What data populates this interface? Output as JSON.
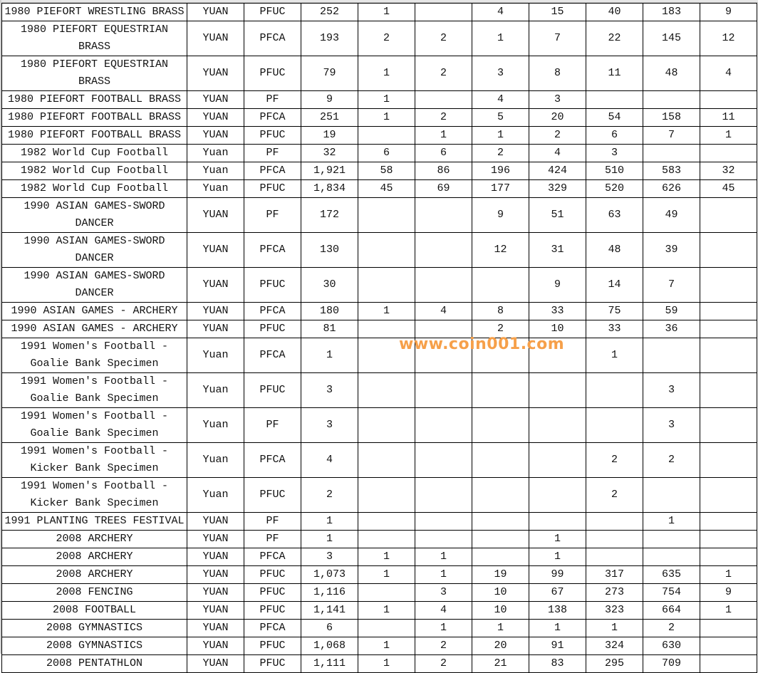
{
  "rows": [
    [
      "1980 PIEFORT WRESTLING BRASS",
      "YUAN",
      "PFUC",
      "252",
      "1",
      "",
      "4",
      "15",
      "40",
      "183",
      "9"
    ],
    [
      "1980 PIEFORT EQUESTRIAN BRASS",
      "YUAN",
      "PFCA",
      "193",
      "2",
      "2",
      "1",
      "7",
      "22",
      "145",
      "12"
    ],
    [
      "1980 PIEFORT EQUESTRIAN BRASS",
      "YUAN",
      "PFUC",
      "79",
      "1",
      "2",
      "3",
      "8",
      "11",
      "48",
      "4"
    ],
    [
      "1980 PIEFORT FOOTBALL BRASS",
      "YUAN",
      "PF",
      "9",
      "1",
      "",
      "4",
      "3",
      "",
      "",
      ""
    ],
    [
      "1980 PIEFORT FOOTBALL BRASS",
      "YUAN",
      "PFCA",
      "251",
      "1",
      "2",
      "5",
      "20",
      "54",
      "158",
      "11"
    ],
    [
      "1980 PIEFORT FOOTBALL BRASS",
      "YUAN",
      "PFUC",
      "19",
      "",
      "1",
      "1",
      "2",
      "6",
      "7",
      "1"
    ],
    [
      "1982 World Cup Football",
      "Yuan",
      "PF",
      "32",
      "6",
      "6",
      "2",
      "4",
      "3",
      "",
      ""
    ],
    [
      "1982 World Cup Football",
      "Yuan",
      "PFCA",
      "1,921",
      "58",
      "86",
      "196",
      "424",
      "510",
      "583",
      "32"
    ],
    [
      "1982 World Cup Football",
      "Yuan",
      "PFUC",
      "1,834",
      "45",
      "69",
      "177",
      "329",
      "520",
      "626",
      "45"
    ],
    [
      "1990 ASIAN GAMES-SWORD DANCER",
      "YUAN",
      "PF",
      "172",
      "",
      "",
      "9",
      "51",
      "63",
      "49",
      ""
    ],
    [
      "1990 ASIAN GAMES-SWORD DANCER",
      "YUAN",
      "PFCA",
      "130",
      "",
      "",
      "12",
      "31",
      "48",
      "39",
      ""
    ],
    [
      "1990 ASIAN GAMES-SWORD DANCER",
      "YUAN",
      "PFUC",
      "30",
      "",
      "",
      "",
      "9",
      "14",
      "7",
      ""
    ],
    [
      "1990 ASIAN GAMES - ARCHERY",
      "YUAN",
      "PFCA",
      "180",
      "1",
      "4",
      "8",
      "33",
      "75",
      "59",
      ""
    ],
    [
      "1990 ASIAN GAMES - ARCHERY",
      "YUAN",
      "PFUC",
      "81",
      "",
      "",
      "2",
      "10",
      "33",
      "36",
      ""
    ],
    [
      "1991 Women's Football - Goalie Bank Specimen",
      "Yuan",
      "PFCA",
      "1",
      "",
      "",
      "",
      "",
      "1",
      "",
      ""
    ],
    [
      "1991 Women's Football - Goalie Bank Specimen",
      "Yuan",
      "PFUC",
      "3",
      "",
      "",
      "",
      "",
      "",
      "3",
      ""
    ],
    [
      "1991 Women's Football - Goalie Bank Specimen",
      "Yuan",
      "PF",
      "3",
      "",
      "",
      "",
      "",
      "",
      "3",
      ""
    ],
    [
      "1991 Women's Football - Kicker Bank Specimen",
      "Yuan",
      "PFCA",
      "4",
      "",
      "",
      "",
      "",
      "2",
      "2",
      ""
    ],
    [
      "1991 Women's Football - Kicker Bank Specimen",
      "Yuan",
      "PFUC",
      "2",
      "",
      "",
      "",
      "",
      "2",
      "",
      ""
    ],
    [
      "1991 PLANTING TREES FESTIVAL",
      "YUAN",
      "PF",
      "1",
      "",
      "",
      "",
      "",
      "",
      "1",
      ""
    ],
    [
      "2008 ARCHERY",
      "YUAN",
      "PF",
      "1",
      "",
      "",
      "",
      "1",
      "",
      "",
      ""
    ],
    [
      "2008 ARCHERY",
      "YUAN",
      "PFCA",
      "3",
      "1",
      "1",
      "",
      "1",
      "",
      "",
      ""
    ],
    [
      "2008 ARCHERY",
      "YUAN",
      "PFUC",
      "1,073",
      "1",
      "1",
      "19",
      "99",
      "317",
      "635",
      "1"
    ],
    [
      "2008 FENCING",
      "YUAN",
      "PFUC",
      "1,116",
      "",
      "3",
      "10",
      "67",
      "273",
      "754",
      "9"
    ],
    [
      "2008 FOOTBALL",
      "YUAN",
      "PFUC",
      "1,141",
      "1",
      "4",
      "10",
      "138",
      "323",
      "664",
      "1"
    ],
    [
      "2008 GYMNASTICS",
      "YUAN",
      "PFCA",
      "6",
      "",
      "1",
      "1",
      "1",
      "1",
      "2",
      ""
    ],
    [
      "2008 GYMNASTICS",
      "YUAN",
      "PFUC",
      "1,068",
      "1",
      "2",
      "20",
      "91",
      "324",
      "630",
      ""
    ],
    [
      "2008 PENTATHLON",
      "YUAN",
      "PFUC",
      "1,111",
      "1",
      "2",
      "21",
      "83",
      "295",
      "709",
      ""
    ]
  ],
  "watermark": "www.coin001.com",
  "watermark_color": "#f6a04a"
}
